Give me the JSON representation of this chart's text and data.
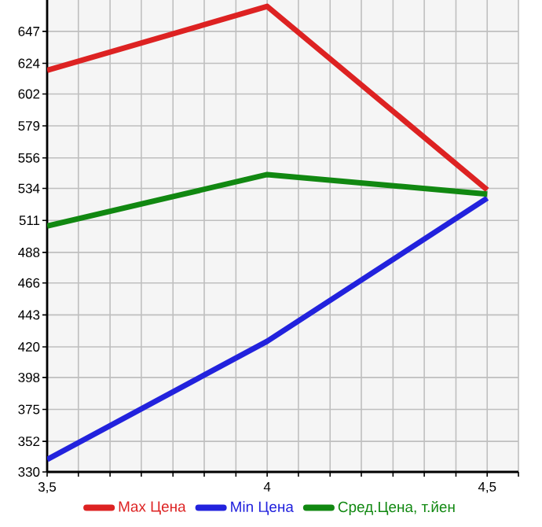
{
  "chart_data": {
    "type": "line",
    "x": [
      3.5,
      4,
      4.5
    ],
    "series": [
      {
        "name": "Max Цена",
        "color": "#dd2222",
        "values": [
          619,
          665,
          533
        ]
      },
      {
        "name": "Min Цена",
        "color": "#2222dd",
        "values": [
          339,
          424,
          527
        ]
      },
      {
        "name": "Сред.Цена, т.йен",
        "color": "#118811",
        "values": [
          507,
          544,
          530
        ]
      }
    ],
    "xlim": [
      3.5,
      4.571
    ],
    "xticks": [
      {
        "value": 3.5,
        "label": "3,5"
      },
      {
        "value": 3.571,
        "label": null
      },
      {
        "value": 3.643,
        "label": null
      },
      {
        "value": 3.714,
        "label": null
      },
      {
        "value": 3.786,
        "label": null
      },
      {
        "value": 3.857,
        "label": null
      },
      {
        "value": 3.929,
        "label": null
      },
      4,
      {
        "value": 4.071,
        "label": null
      },
      {
        "value": 4.143,
        "label": null
      },
      {
        "value": 4.214,
        "label": null
      },
      {
        "value": 4.286,
        "label": null
      },
      {
        "value": 4.357,
        "label": null
      },
      {
        "value": 4.429,
        "label": null
      },
      {
        "value": 4.5,
        "label": "4,5"
      },
      {
        "value": 4.571,
        "label": null
      }
    ],
    "ylim": [
      330,
      669.6
    ],
    "yticks": [
      330,
      352,
      375,
      398,
      420,
      443,
      466,
      488,
      511,
      534,
      556,
      579,
      602,
      624,
      647
    ],
    "grid": true,
    "legend": "bottom",
    "marker": "none",
    "line_style": "solid"
  }
}
